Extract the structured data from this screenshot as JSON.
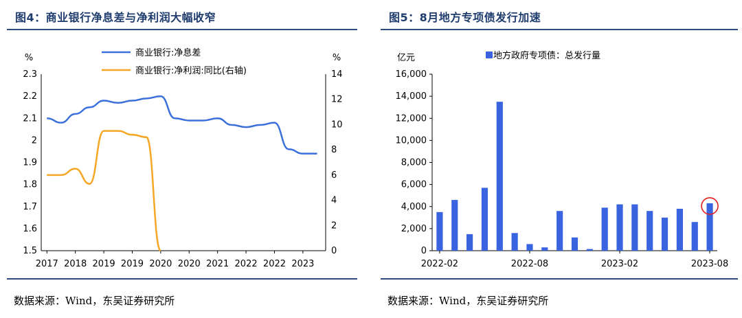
{
  "left": {
    "title": "图4：商业银行净息差与净利润大幅收窄",
    "source": "数据来源：Wind，东吴证券研究所",
    "chart_data": {
      "type": "line",
      "title": "商业银行净息差与净利润大幅收窄",
      "ylabel_left": "%",
      "ylabel_right": "%",
      "ylim_left": [
        1.5,
        2.3
      ],
      "ylim_right": [
        0,
        14
      ],
      "x_ticks": [
        "2017",
        "2018",
        "2019",
        "2019",
        "2020",
        "2020",
        "2021",
        "2022",
        "2022",
        "2023"
      ],
      "y_ticks_left": [
        "2.3",
        "2.2",
        "2.1",
        "2",
        "1.9",
        "1.8",
        "1.7",
        "1.6",
        "1.5"
      ],
      "y_ticks_right": [
        "14",
        "12",
        "10",
        "8",
        "6",
        "4",
        "2",
        "0"
      ],
      "series": [
        {
          "name": "商业银行:净息差",
          "axis": "left",
          "color": "#3b6fdc",
          "x": [
            0,
            0.5,
            1,
            1.5,
            2,
            2.5,
            3,
            3.5,
            4,
            4.5,
            5,
            5.5,
            6,
            6.5,
            7,
            7.5,
            8,
            8.5,
            9,
            9.5
          ],
          "values": [
            2.1,
            2.08,
            2.12,
            2.15,
            2.18,
            2.17,
            2.18,
            2.19,
            2.2,
            2.1,
            2.09,
            2.09,
            2.1,
            2.07,
            2.06,
            2.07,
            2.08,
            1.96,
            1.94,
            1.94
          ]
        },
        {
          "name": "商业银行:净利润:同比(右轴)",
          "axis": "right",
          "color": "#f5a623",
          "x": [
            0,
            0.5,
            1,
            1.5,
            2,
            2.5,
            3,
            3.5,
            4
          ],
          "values": [
            6.0,
            6.0,
            6.5,
            5.3,
            9.5,
            9.5,
            9.2,
            9.0,
            0
          ]
        }
      ]
    }
  },
  "right": {
    "title": "图5：8月地方专项债发行加速",
    "source": "数据来源：Wind，东吴证券研究所",
    "chart_data": {
      "type": "bar",
      "ylabel": "亿元",
      "legend": "地方政府专项债：总发行量",
      "ylim": [
        0,
        16000
      ],
      "y_ticks": [
        "16,000",
        "14,000",
        "12,000",
        "10,000",
        "8,000",
        "6,000",
        "4,000",
        "2,000",
        "0"
      ],
      "x_tick_labels": [
        "2022-02",
        "2022-08",
        "2023-02",
        "2023-08"
      ],
      "categories": [
        "2022-02",
        "2022-03",
        "2022-04",
        "2022-05",
        "2022-06",
        "2022-07",
        "2022-08",
        "2022-09",
        "2022-10",
        "2022-11",
        "2022-12",
        "2023-01",
        "2023-02",
        "2023-03",
        "2023-04",
        "2023-05",
        "2023-06",
        "2023-07",
        "2023-08"
      ],
      "values": [
        3500,
        4600,
        1500,
        5700,
        13500,
        1600,
        600,
        300,
        3600,
        1200,
        150,
        3900,
        4200,
        4200,
        3600,
        3000,
        3800,
        2600,
        4300
      ],
      "color": "#3a63e0",
      "highlight_index": 18,
      "highlight_color": "#e02020"
    }
  }
}
